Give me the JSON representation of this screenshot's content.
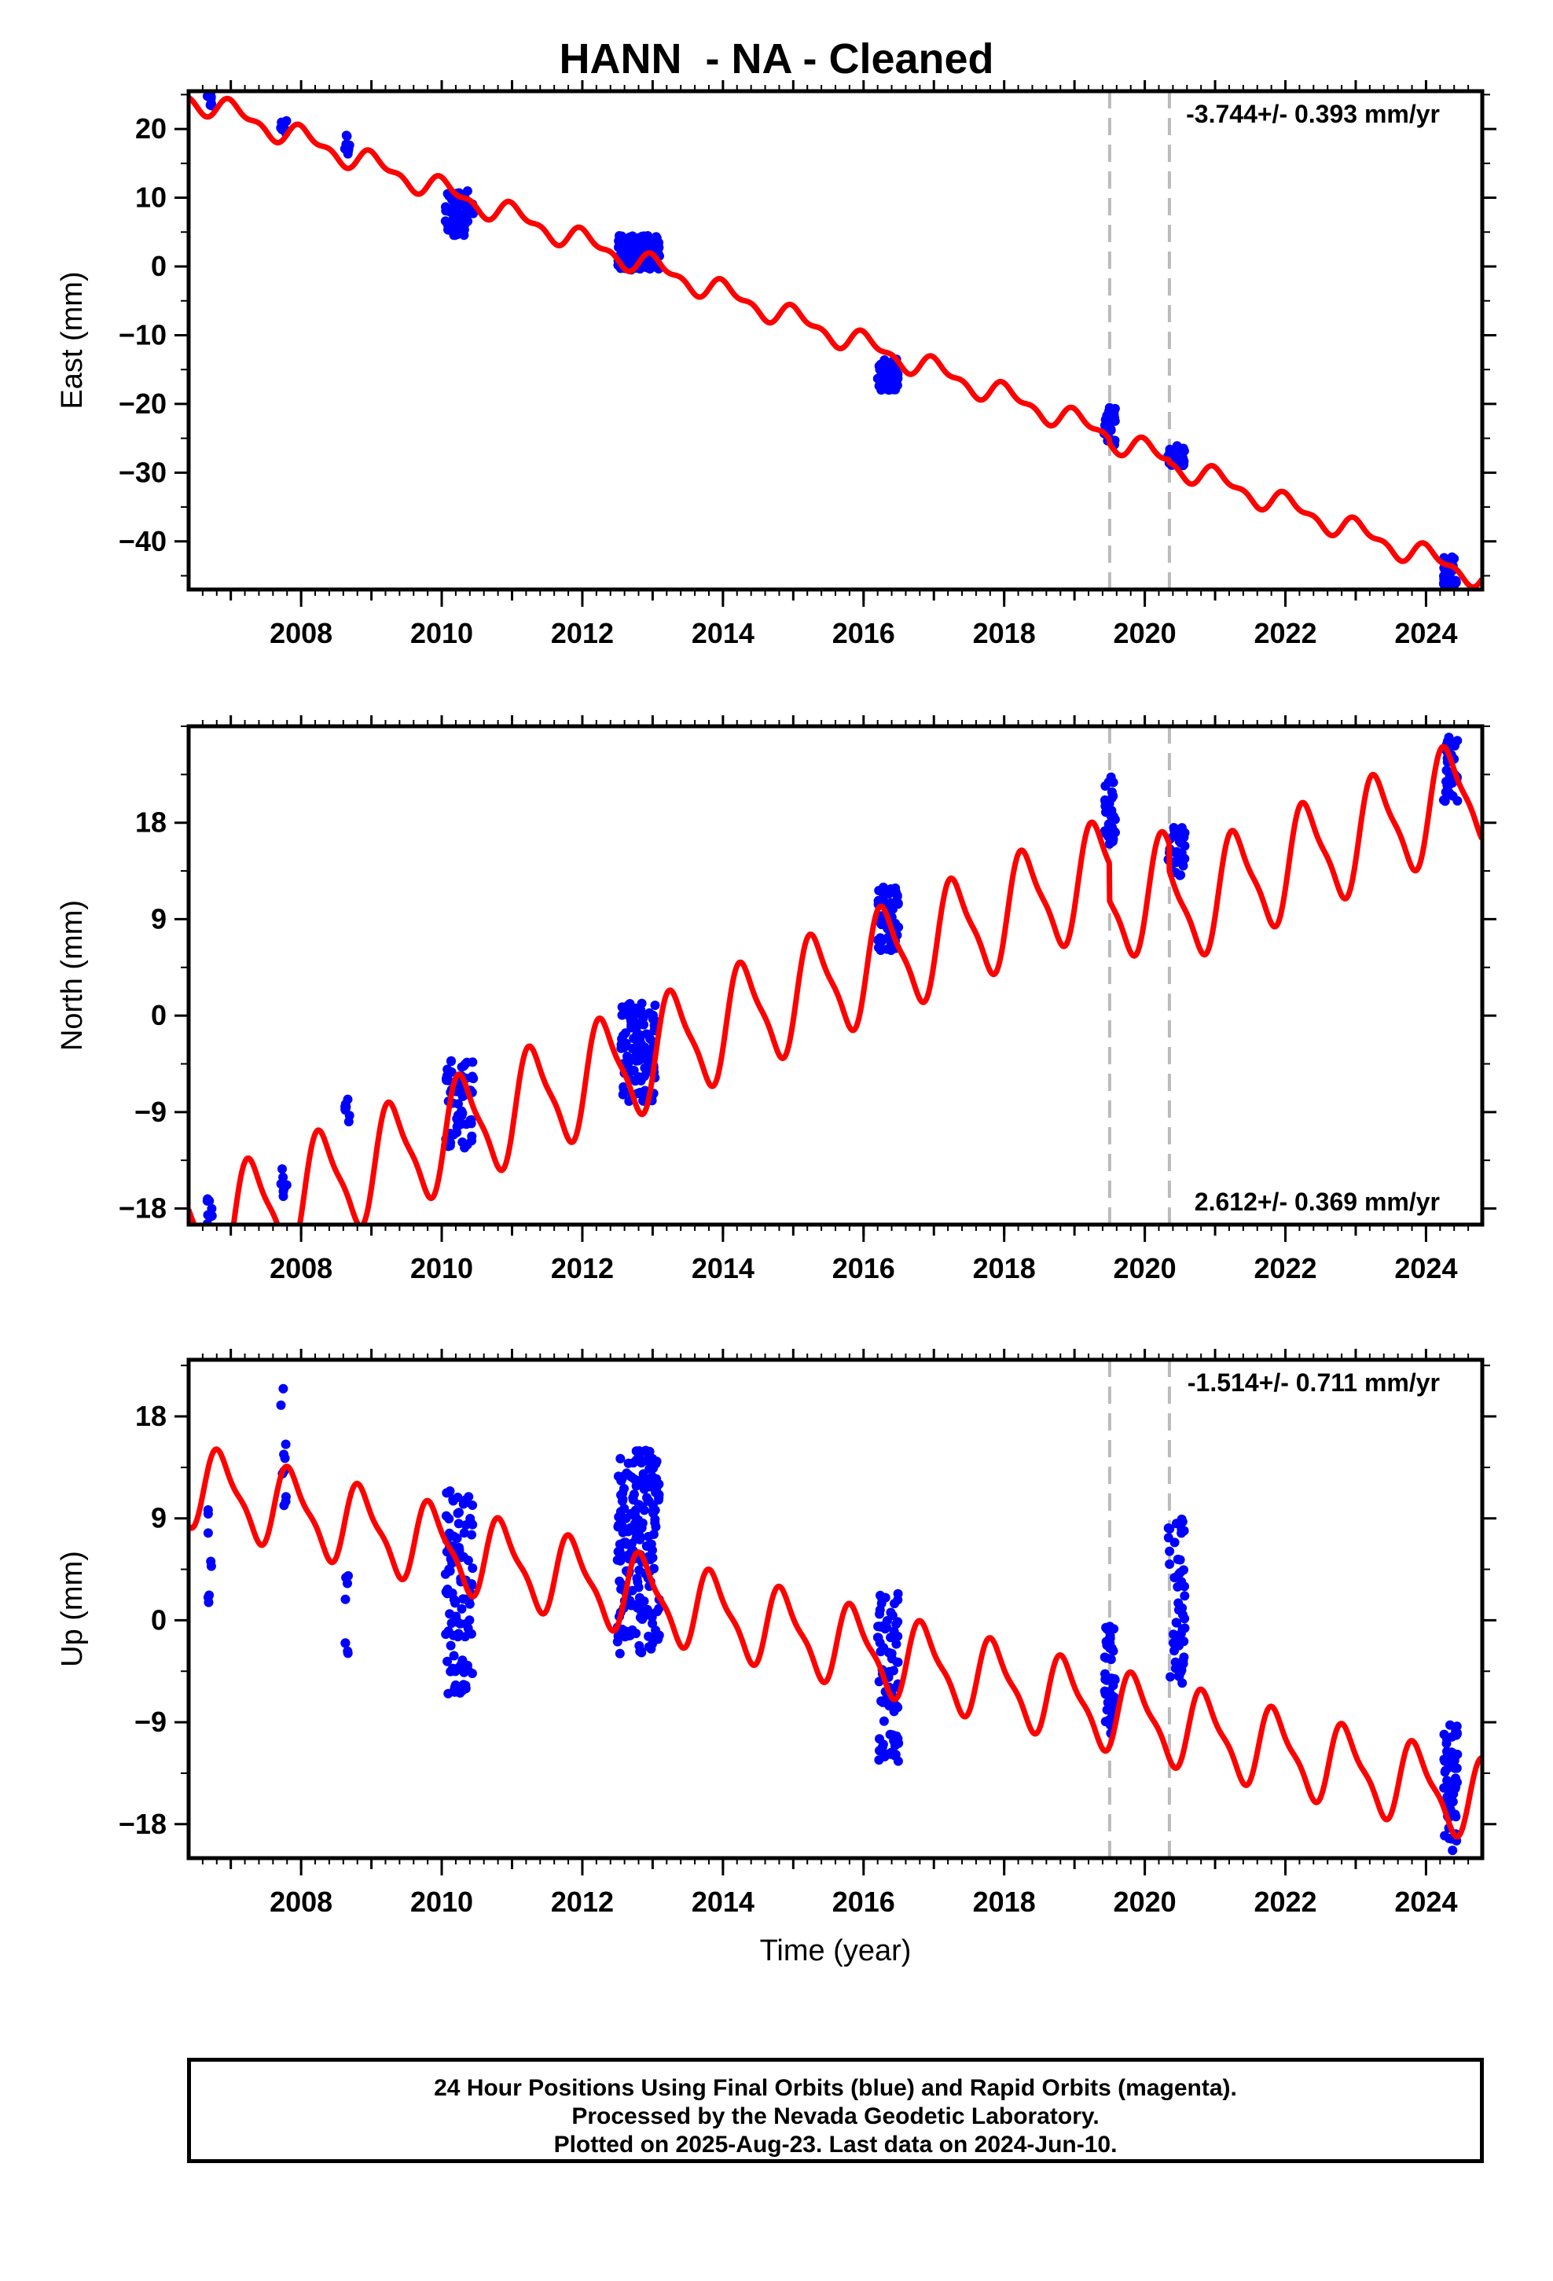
{
  "title": "HANN  - NA - Cleaned",
  "footer": {
    "line1": "24 Hour Positions Using Final Orbits (blue) and Rapid Orbits (magenta).",
    "line2": "Processed by the Nevada Geodetic Laboratory.",
    "line3": "Plotted on 2025-Aug-23. Last data on 2024-Jun-10."
  },
  "colors": {
    "data": "#0000ff",
    "model": "#ff0000",
    "breaks": "#bbbbbb"
  },
  "chart_data": [
    {
      "type": "scatter",
      "component": "east",
      "ylabel": "East (mm)",
      "xlabel": "",
      "xlim": [
        2006.4,
        2024.8
      ],
      "ylim": [
        -47,
        25.5
      ],
      "yticks": [
        20,
        10,
        0,
        -10,
        -20,
        -30,
        -40
      ],
      "ytick_labels": [
        "20",
        "10",
        "0",
        "−10",
        "−20",
        "−30",
        "−40"
      ],
      "xticks": [
        2008,
        2010,
        2012,
        2014,
        2016,
        2018,
        2020,
        2022,
        2024
      ],
      "annotation": "-3.744+/- 0.393 mm/yr",
      "breaks": [
        2019.5,
        2020.35
      ],
      "model": {
        "rate": -3.744,
        "intercept": 23.5,
        "annual_amp": 1.4,
        "annual_phase": 1.2,
        "semi_amp": 0.8,
        "offset_at_2019_5": -0.6,
        "offset_at_2020_35": -0.4
      },
      "data_clusters": [
        {
          "t": 2006.7,
          "dt": 0.05,
          "y": [
            23,
            25
          ],
          "n": 8
        },
        {
          "t": 2007.75,
          "dt": 0.05,
          "y": [
            19,
            21.5
          ],
          "n": 8
        },
        {
          "t": 2008.65,
          "dt": 0.04,
          "y": [
            16,
            19.5
          ],
          "n": 8
        },
        {
          "t": 2010.25,
          "dt": 0.2,
          "y": [
            4.5,
            11
          ],
          "n": 60
        },
        {
          "t": 2012.8,
          "dt": 0.3,
          "y": [
            -0.5,
            4.5
          ],
          "n": 140
        },
        {
          "t": 2016.35,
          "dt": 0.15,
          "y": [
            -18,
            -13.5
          ],
          "n": 60
        },
        {
          "t": 2019.5,
          "dt": 0.08,
          "y": [
            -26,
            -20.5
          ],
          "n": 35
        },
        {
          "t": 2020.45,
          "dt": 0.12,
          "y": [
            -29,
            -26
          ],
          "n": 35
        },
        {
          "t": 2024.35,
          "dt": 0.1,
          "y": [
            -46.5,
            -42
          ],
          "n": 40
        }
      ]
    },
    {
      "type": "scatter",
      "component": "north",
      "ylabel": "North (mm)",
      "xlabel": "",
      "xlim": [
        2006.4,
        2024.8
      ],
      "ylim": [
        -19.5,
        27
      ],
      "yticks": [
        18,
        9,
        0,
        -9,
        -18
      ],
      "ytick_labels": [
        "18",
        "9",
        "0",
        "−9",
        "−18"
      ],
      "xticks": [
        2008,
        2010,
        2012,
        2014,
        2016,
        2018,
        2020,
        2022,
        2024
      ],
      "annotation": "2.612+/- 0.369 mm/yr",
      "breaks": [
        2019.5,
        2020.35
      ],
      "model": {
        "rate": 2.612,
        "intercept": -20,
        "annual_amp": 4.8,
        "annual_phase": -0.3,
        "semi_amp": 1.2,
        "offset_at_2019_5": -3.5,
        "offset_at_2020_35": -2.5
      },
      "data_clusters": [
        {
          "t": 2006.7,
          "dt": 0.04,
          "y": [
            -19.5,
            -16.5
          ],
          "n": 8
        },
        {
          "t": 2007.75,
          "dt": 0.05,
          "y": [
            -17,
            -14
          ],
          "n": 8
        },
        {
          "t": 2008.65,
          "dt": 0.04,
          "y": [
            -10.5,
            -7.5
          ],
          "n": 8
        },
        {
          "t": 2010.25,
          "dt": 0.2,
          "y": [
            -12.5,
            -4
          ],
          "n": 60
        },
        {
          "t": 2012.8,
          "dt": 0.25,
          "y": [
            -8,
            1.5
          ],
          "n": 120
        },
        {
          "t": 2016.35,
          "dt": 0.15,
          "y": [
            6,
            12
          ],
          "n": 60
        },
        {
          "t": 2019.5,
          "dt": 0.08,
          "y": [
            16,
            22.5
          ],
          "n": 35
        },
        {
          "t": 2020.45,
          "dt": 0.12,
          "y": [
            13,
            18
          ],
          "n": 35
        },
        {
          "t": 2024.35,
          "dt": 0.1,
          "y": [
            20,
            26.5
          ],
          "n": 40
        }
      ]
    },
    {
      "type": "scatter",
      "component": "up",
      "ylabel": "Up (mm)",
      "xlabel": "Time (year)",
      "xlim": [
        2006.4,
        2024.8
      ],
      "ylim": [
        -21,
        23
      ],
      "yticks": [
        18,
        9,
        0,
        -9,
        -18
      ],
      "ytick_labels": [
        "18",
        "9",
        "0",
        "−9",
        "−18"
      ],
      "xticks": [
        2008,
        2010,
        2012,
        2014,
        2016,
        2018,
        2020,
        2022,
        2024
      ],
      "annotation": "-1.514+/- 0.711 mm/yr",
      "breaks": [
        2019.5,
        2020.35
      ],
      "model": {
        "rate": -1.514,
        "intercept": 11.5,
        "annual_amp": 3.3,
        "annual_phase": 2.4,
        "semi_amp": 1.0,
        "offset_at_2019_5": 0,
        "offset_at_2020_35": 0
      },
      "data_clusters": [
        {
          "t": 2006.7,
          "dt": 0.03,
          "y": [
            1,
            11
          ],
          "n": 8
        },
        {
          "t": 2007.75,
          "dt": 0.04,
          "y": [
            10,
            22
          ],
          "n": 10
        },
        {
          "t": 2008.65,
          "dt": 0.03,
          "y": [
            -3,
            4
          ],
          "n": 8
        },
        {
          "t": 2010.25,
          "dt": 0.2,
          "y": [
            -6.5,
            11.5
          ],
          "n": 100
        },
        {
          "t": 2012.8,
          "dt": 0.3,
          "y": [
            -3,
            15
          ],
          "n": 200
        },
        {
          "t": 2016.35,
          "dt": 0.15,
          "y": [
            -12.5,
            2.5
          ],
          "n": 80
        },
        {
          "t": 2019.5,
          "dt": 0.08,
          "y": [
            -10,
            -0.5
          ],
          "n": 45
        },
        {
          "t": 2020.45,
          "dt": 0.12,
          "y": [
            -6.5,
            10.5
          ],
          "n": 50
        },
        {
          "t": 2024.35,
          "dt": 0.1,
          "y": [
            -20.5,
            -9
          ],
          "n": 55
        }
      ]
    }
  ]
}
